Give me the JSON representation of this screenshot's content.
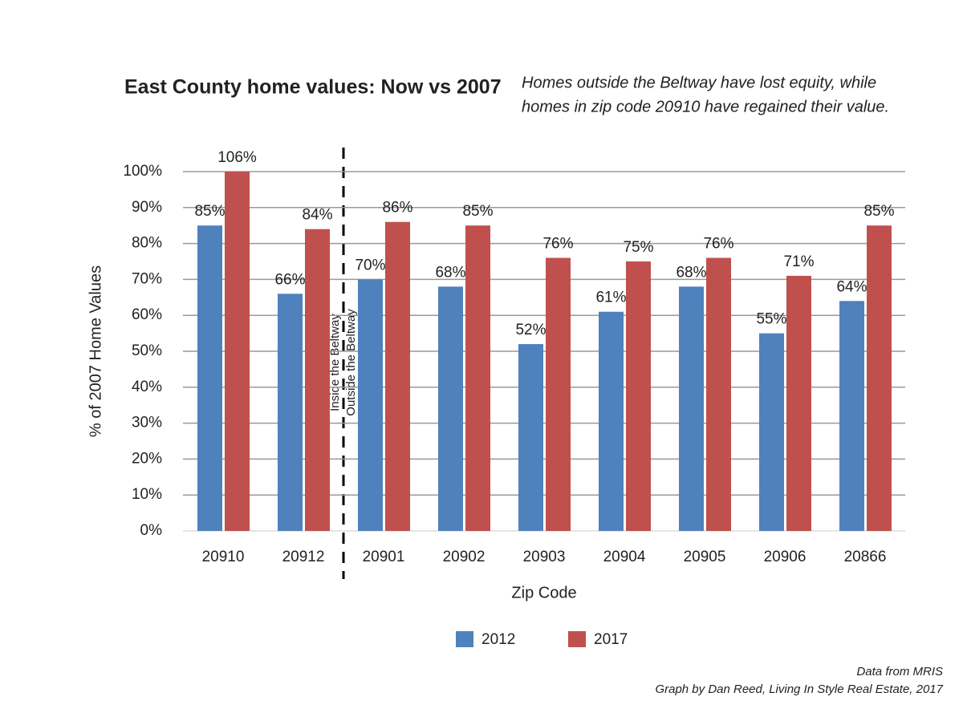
{
  "chart_data": {
    "type": "bar",
    "title": "East County home values: Now vs 2007",
    "subtitle": [
      "Homes outside the Beltway have lost equity, while",
      "homes in zip code 20910 have regained their value."
    ],
    "x_label": "Zip Code",
    "y_label": "% of 2007 Home Values",
    "categories": [
      "20910",
      "20912",
      "20901",
      "20902",
      "20903",
      "20904",
      "20905",
      "20906",
      "20866"
    ],
    "series": [
      {
        "name": "2012",
        "color": "#4f81bd",
        "values": [
          85,
          66,
          70,
          68,
          52,
          61,
          68,
          55,
          64
        ],
        "value_labels": [
          "85%",
          "66%",
          "70%",
          "68%",
          "52%",
          "61%",
          "68%",
          "55%",
          "64%"
        ]
      },
      {
        "name": "2017",
        "color": "#c0504d",
        "values": [
          106,
          84,
          86,
          85,
          76,
          75,
          76,
          71,
          85
        ],
        "value_labels": [
          "106%",
          "84%",
          "86%",
          "85%",
          "76%",
          "75%",
          "76%",
          "71%",
          "85%"
        ]
      }
    ],
    "ylim": [
      0,
      100
    ],
    "yticks": [
      {
        "value": 0,
        "label": "0%"
      },
      {
        "value": 10,
        "label": "10%"
      },
      {
        "value": 20,
        "label": "20%"
      },
      {
        "value": 30,
        "label": "30%"
      },
      {
        "value": 40,
        "label": "40%"
      },
      {
        "value": 50,
        "label": "50%"
      },
      {
        "value": 60,
        "label": "60%"
      },
      {
        "value": 70,
        "label": "70%"
      },
      {
        "value": 80,
        "label": "80%"
      },
      {
        "value": 90,
        "label": "90%"
      },
      {
        "value": 100,
        "label": "100%"
      }
    ],
    "grid": true,
    "annotations": [
      "Inside the Beltway",
      "Outside the Beltway"
    ],
    "notes": [
      "Data from MRIS",
      "Graph by Dan Reed, Living In Style Real Estate, 2017"
    ]
  }
}
